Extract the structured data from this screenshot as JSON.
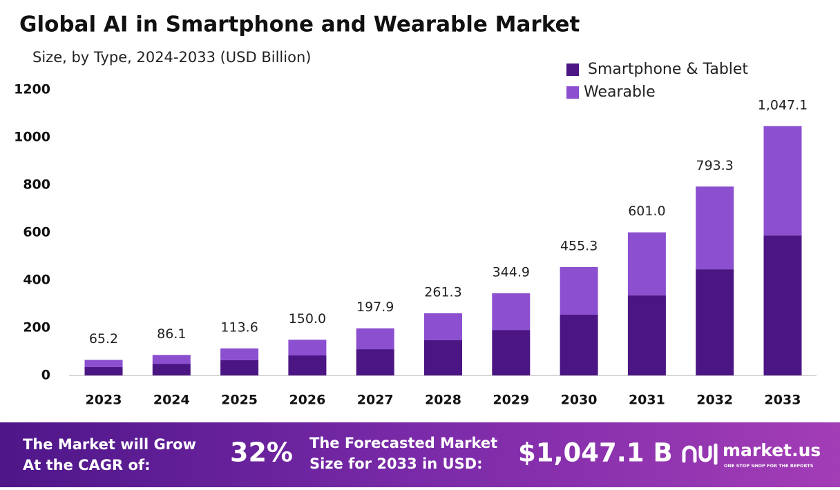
{
  "chart_data": {
    "type": "stacked_bar",
    "title": "Global AI in Smartphone and Wearable Market",
    "subtitle": "Size, by Type, 2024-2033 (USD Billion)",
    "categories": [
      "2023",
      "2024",
      "2025",
      "2026",
      "2027",
      "2028",
      "2029",
      "2030",
      "2031",
      "2032",
      "2033"
    ],
    "series": [
      {
        "name": "Smartphone & Tablet",
        "color": "#4b1583",
        "values": [
          35,
          49,
          64,
          84,
          110,
          148,
          191,
          255,
          336,
          446,
          588
        ]
      },
      {
        "name": "Wearable",
        "color": "#8b4fd0",
        "values": [
          30.2,
          37.1,
          49.6,
          66,
          87.9,
          113.3,
          153.9,
          200.3,
          265,
          347.3,
          459.1
        ]
      }
    ],
    "totals": [
      65.2,
      86.1,
      113.6,
      150,
      197.9,
      261.3,
      344.9,
      455.3,
      601,
      793.3,
      1047.1
    ],
    "value_labels": [
      "65.2",
      "86.1",
      "113.6",
      "150.0",
      "197.9",
      "261.3",
      "344.9",
      "455.3",
      "601.0",
      "793.3",
      "1,047.1"
    ],
    "ylim": [
      0,
      1200
    ],
    "yticks": [
      0,
      200,
      400,
      600,
      800,
      1000,
      1200
    ],
    "grid": false,
    "legend": "top-right"
  },
  "footer": {
    "cagr_text": [
      "The Market will Grow",
      "At the CAGR of:"
    ],
    "cagr_value": "32%",
    "forecast_text": [
      "The Forecasted Market",
      "Size for 2033 in USD:"
    ],
    "forecast_value": "$1,047.1 B",
    "logo": "market.us",
    "tagline": "ONE STOP SHOP FOR THE REPORTS"
  }
}
